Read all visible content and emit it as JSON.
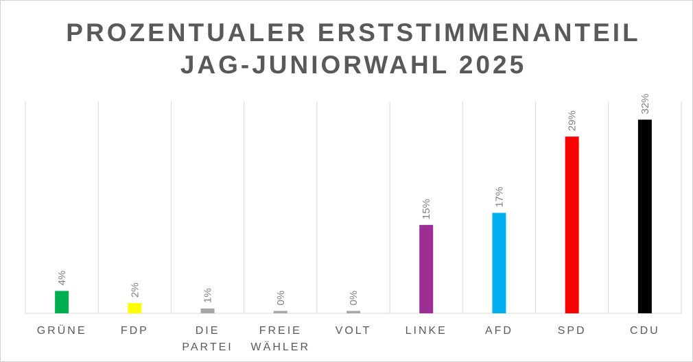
{
  "chart_data": {
    "type": "bar",
    "title": "PROZENTUALER ERSTSTIMMENANTEIL",
    "subtitle": "JAG-JUNIORWAHL 2025",
    "categories": [
      "GRÜNE",
      "FDP",
      "DIE PARTEI",
      "FREIE WÄHLER",
      "VOLT",
      "LINKE",
      "AFD",
      "SPD",
      "CDU"
    ],
    "values": [
      3.7,
      1.7,
      0.8,
      0.4,
      0.4,
      14.6,
      16.6,
      29.2,
      32.0
    ],
    "value_labels": [
      "4%",
      "2%",
      "1%",
      "0%",
      "0%",
      "15%",
      "17%",
      "29%",
      "32%"
    ],
    "colors": [
      "#00b050",
      "#ffff00",
      "#a6a6a6",
      "#a6a6a6",
      "#a6a6a6",
      "#9b2d94",
      "#00b0f0",
      "#ff0000",
      "#000000"
    ],
    "ylim": [
      0,
      35
    ],
    "grid": true
  }
}
